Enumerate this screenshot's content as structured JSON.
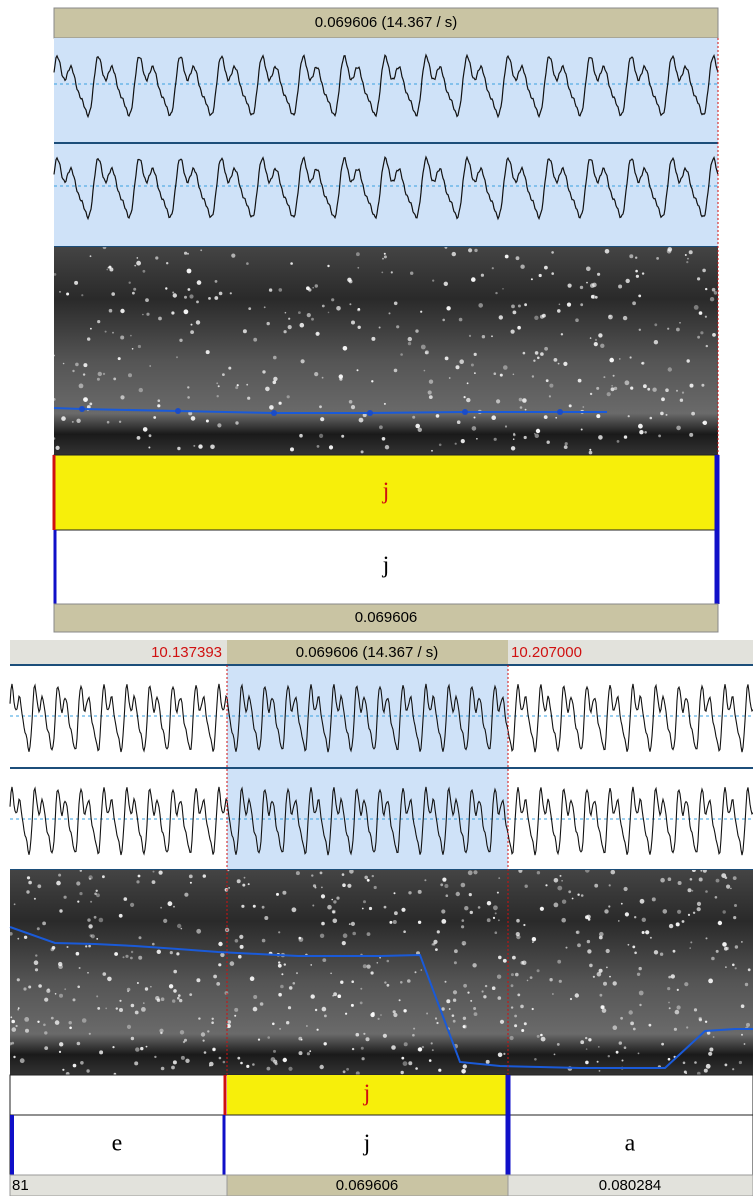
{
  "top_view": {
    "selection_header": "0.069606 (14.367 / s)",
    "tier_1_label": "j",
    "tier_2_label": "j",
    "footer": "0.069606"
  },
  "bottom_view": {
    "header": {
      "start": "10.137393",
      "selection": "0.069606 (14.367 / s)",
      "end": "10.207000"
    },
    "tier_1_label": "j",
    "tier_2_labels": [
      "e",
      "j",
      "a"
    ],
    "footer": [
      "81",
      "0.069606",
      "0.080284"
    ]
  }
}
